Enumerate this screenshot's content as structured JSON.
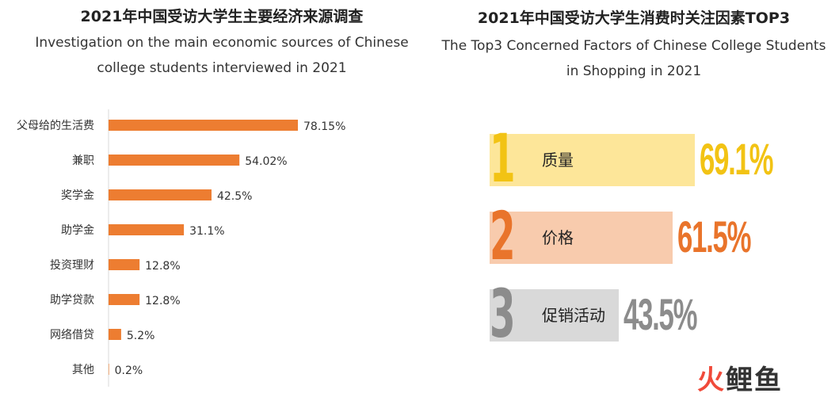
{
  "chart_data": [
    {
      "type": "bar",
      "orientation": "horizontal",
      "title": "2021年中国受访大学生主要经济来源调查",
      "subtitle": "Investigation on the main economic sources of Chinese college students interviewed in 2021",
      "categories": [
        "父母给的生活费",
        "兼职",
        "奖学金",
        "助学金",
        "投资理财",
        "助学贷款",
        "网络借贷",
        "其他"
      ],
      "values": [
        78.15,
        54.02,
        42.5,
        31.1,
        12.8,
        12.8,
        5.2,
        0.2
      ],
      "value_labels": [
        "78.15%",
        "54.02%",
        "42.5%",
        "31.1%",
        "12.8%",
        "12.8%",
        "5.2%",
        "0.2%"
      ],
      "xlim": [
        0,
        100
      ],
      "color": "#ed7d31",
      "grid": false,
      "xlabel": "",
      "ylabel": ""
    },
    {
      "type": "table",
      "title": "2021年中国受访大学生消费时关注因素TOP3",
      "subtitle": "The Top3 Concerned Factors of Chinese College Students in Shopping in 2021",
      "ranks": [
        "1",
        "2",
        "3"
      ],
      "factors": [
        "质量",
        "价格",
        "促销活动"
      ],
      "values": [
        69.1,
        61.5,
        43.5
      ],
      "value_labels": [
        "69.1%",
        "61.5%",
        "43.5%"
      ],
      "box_colors": [
        "#fde699",
        "#f8cbad",
        "#d9d9d9"
      ],
      "num_colors": [
        "#f2c314",
        "#e9742b",
        "#8c8c8c"
      ]
    }
  ],
  "watermark": {
    "part1": "火",
    "part2": "鲤鱼"
  }
}
